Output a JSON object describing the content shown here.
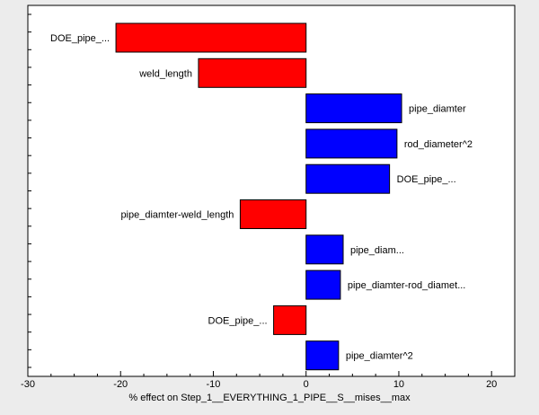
{
  "chart_data": {
    "type": "bar",
    "orientation": "horizontal",
    "xlabel": "% effect on Step_1__EVERYTHING_1_PIPE__S__mises__max",
    "xlim": [
      -30,
      22.5
    ],
    "xticks": [
      -30,
      -20,
      -10,
      0,
      10,
      20
    ],
    "grid": false,
    "colors": {
      "negative": "#ff0000",
      "positive": "#0000ff",
      "background": "#ececec",
      "plot_background": "#ffffff"
    },
    "bars": [
      {
        "label": "DOE_pipe_...",
        "value": -20.5
      },
      {
        "label": "weld_length",
        "value": -11.6
      },
      {
        "label": "pipe_diamter",
        "value": 10.3
      },
      {
        "label": "rod_diameter^2",
        "value": 9.8
      },
      {
        "label": "DOE_pipe_...",
        "value": 9.0
      },
      {
        "label": "pipe_diamter-weld_length",
        "value": -7.1
      },
      {
        "label": "pipe_diam...",
        "value": 4.0
      },
      {
        "label": "pipe_diamter-rod_diamet...",
        "value": 3.7
      },
      {
        "label": "DOE_pipe_...",
        "value": -3.5
      },
      {
        "label": "pipe_diamter^2",
        "value": 3.5
      }
    ]
  }
}
